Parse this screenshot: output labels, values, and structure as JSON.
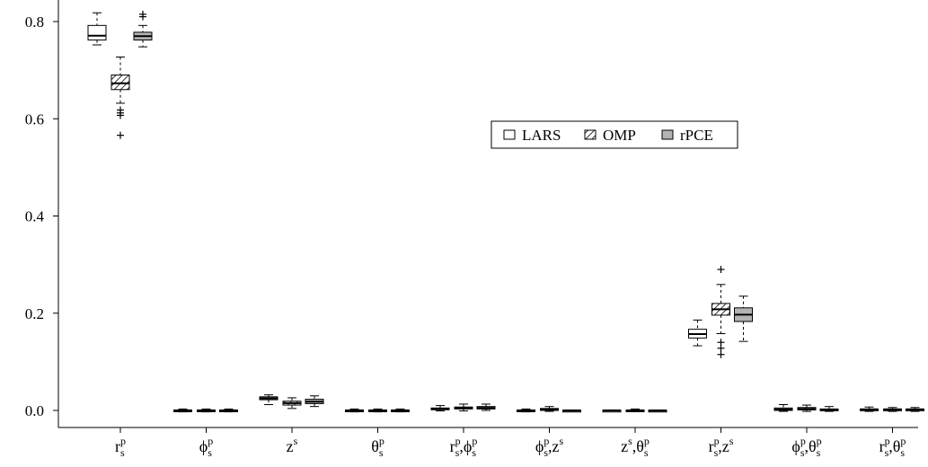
{
  "chart_data": {
    "type": "boxplot",
    "title": "",
    "xlabel": "",
    "ylabel": "",
    "ylim": [
      -0.005,
      0.85
    ],
    "yticks": [
      0.0,
      0.2,
      0.4,
      0.6,
      0.8
    ],
    "ytick_labels": [
      "0.0",
      "0.2",
      "0.4",
      "0.6",
      "0.8"
    ],
    "grid": false,
    "legend_position": "center-right",
    "categories": [
      {
        "base": "r",
        "sub": "s",
        "sup": "p"
      },
      {
        "base": "ϕ",
        "sub": "s",
        "sup": "p"
      },
      {
        "base": "z",
        "sub": "",
        "sup": "s"
      },
      {
        "base": "θ",
        "sub": "s",
        "sup": "p"
      },
      {
        "parts": [
          {
            "base": "r",
            "sub": "s",
            "sup": "p"
          },
          {
            "base": "ϕ",
            "sub": "s",
            "sup": "p"
          }
        ]
      },
      {
        "parts": [
          {
            "base": "ϕ",
            "sub": "s",
            "sup": "p"
          },
          {
            "base": "z",
            "sub": "",
            "sup": "s"
          }
        ]
      },
      {
        "parts": [
          {
            "base": "z",
            "sub": "",
            "sup": "s"
          },
          {
            "base": "θ",
            "sub": "s",
            "sup": "p"
          }
        ]
      },
      {
        "parts": [
          {
            "base": "r",
            "sub": "s",
            "sup": "p"
          },
          {
            "base": "z",
            "sub": "",
            "sup": "s"
          }
        ]
      },
      {
        "parts": [
          {
            "base": "ϕ",
            "sub": "s",
            "sup": "p"
          },
          {
            "base": "θ",
            "sub": "s",
            "sup": "p"
          }
        ]
      },
      {
        "parts": [
          {
            "base": "r",
            "sub": "s",
            "sup": "p"
          },
          {
            "base": "θ",
            "sub": "s",
            "sup": "p"
          }
        ]
      }
    ],
    "series": [
      {
        "name": "LARS",
        "fill": "#ffffff",
        "pattern": "none",
        "boxes": [
          {
            "whislo": 0.752,
            "q1": 0.762,
            "med": 0.771,
            "q3": 0.792,
            "whishi": 0.818,
            "fliers": []
          },
          {
            "whislo": -0.003,
            "q1": -0.001,
            "med": 0.0,
            "q3": 0.001,
            "whishi": 0.003,
            "fliers": []
          },
          {
            "whislo": 0.012,
            "q1": 0.022,
            "med": 0.025,
            "q3": 0.028,
            "whishi": 0.032,
            "fliers": []
          },
          {
            "whislo": -0.003,
            "q1": -0.001,
            "med": 0.0,
            "q3": 0.001,
            "whishi": 0.003,
            "fliers": []
          },
          {
            "whislo": -0.001,
            "q1": 0.002,
            "med": 0.003,
            "q3": 0.005,
            "whishi": 0.01,
            "fliers": []
          },
          {
            "whislo": -0.003,
            "q1": -0.001,
            "med": 0.0,
            "q3": 0.001,
            "whishi": 0.003,
            "fliers": []
          },
          {
            "whislo": -0.001,
            "q1": -0.0005,
            "med": 0.0,
            "q3": 0.0005,
            "whishi": 0.001,
            "fliers": []
          },
          {
            "whislo": 0.133,
            "q1": 0.149,
            "med": 0.157,
            "q3": 0.167,
            "whishi": 0.186,
            "fliers": []
          },
          {
            "whislo": -0.002,
            "q1": 0.0,
            "med": 0.002,
            "q3": 0.005,
            "whishi": 0.012,
            "fliers": []
          },
          {
            "whislo": -0.002,
            "q1": 0.0,
            "med": 0.002,
            "q3": 0.003,
            "whishi": 0.007,
            "fliers": []
          }
        ]
      },
      {
        "name": "OMP",
        "fill": "#ffffff",
        "pattern": "hatch",
        "boxes": [
          {
            "whislo": 0.632,
            "q1": 0.66,
            "med": 0.673,
            "q3": 0.69,
            "whishi": 0.727,
            "fliers": [
              0.618,
              0.612,
              0.607,
              0.566
            ]
          },
          {
            "whislo": -0.003,
            "q1": -0.001,
            "med": 0.0,
            "q3": 0.001,
            "whishi": 0.003,
            "fliers": []
          },
          {
            "whislo": 0.004,
            "q1": 0.011,
            "med": 0.015,
            "q3": 0.019,
            "whishi": 0.026,
            "fliers": []
          },
          {
            "whislo": -0.003,
            "q1": -0.001,
            "med": 0.0,
            "q3": 0.001,
            "whishi": 0.003,
            "fliers": []
          },
          {
            "whislo": -0.001,
            "q1": 0.003,
            "med": 0.005,
            "q3": 0.007,
            "whishi": 0.013,
            "fliers": []
          },
          {
            "whislo": -0.002,
            "q1": 0.0,
            "med": 0.002,
            "q3": 0.004,
            "whishi": 0.008,
            "fliers": []
          },
          {
            "whislo": -0.002,
            "q1": -0.001,
            "med": 0.0,
            "q3": 0.001,
            "whishi": 0.003,
            "fliers": []
          },
          {
            "whislo": 0.158,
            "q1": 0.196,
            "med": 0.208,
            "q3": 0.22,
            "whishi": 0.259,
            "fliers": [
              0.29,
              0.14,
              0.128,
              0.115
            ]
          },
          {
            "whislo": -0.002,
            "q1": 0.001,
            "med": 0.003,
            "q3": 0.006,
            "whishi": 0.011,
            "fliers": []
          },
          {
            "whislo": -0.002,
            "q1": 0.0,
            "med": 0.002,
            "q3": 0.003,
            "whishi": 0.006,
            "fliers": []
          }
        ]
      },
      {
        "name": "rPCE",
        "fill": "#b3b3b3",
        "pattern": "none",
        "boxes": [
          {
            "whislo": 0.748,
            "q1": 0.762,
            "med": 0.77,
            "q3": 0.778,
            "whishi": 0.792,
            "fliers": [
              0.81,
              0.815
            ]
          },
          {
            "whislo": -0.003,
            "q1": -0.001,
            "med": 0.0,
            "q3": 0.001,
            "whishi": 0.003,
            "fliers": []
          },
          {
            "whislo": 0.008,
            "q1": 0.014,
            "med": 0.018,
            "q3": 0.023,
            "whishi": 0.03,
            "fliers": []
          },
          {
            "whislo": -0.003,
            "q1": -0.001,
            "med": 0.0,
            "q3": 0.001,
            "whishi": 0.003,
            "fliers": []
          },
          {
            "whislo": 0.0,
            "q1": 0.003,
            "med": 0.005,
            "q3": 0.008,
            "whishi": 0.013,
            "fliers": []
          },
          {
            "whislo": -0.001,
            "q1": -0.0005,
            "med": 0.0,
            "q3": 0.0005,
            "whishi": 0.001,
            "fliers": []
          },
          {
            "whislo": -0.001,
            "q1": -0.0005,
            "med": 0.0,
            "q3": 0.0005,
            "whishi": 0.001,
            "fliers": []
          },
          {
            "whislo": 0.142,
            "q1": 0.183,
            "med": 0.197,
            "q3": 0.211,
            "whishi": 0.235,
            "fliers": []
          },
          {
            "whislo": -0.002,
            "q1": 0.0,
            "med": 0.001,
            "q3": 0.003,
            "whishi": 0.008,
            "fliers": []
          },
          {
            "whislo": -0.002,
            "q1": 0.0,
            "med": 0.002,
            "q3": 0.003,
            "whishi": 0.006,
            "fliers": []
          }
        ]
      }
    ]
  }
}
